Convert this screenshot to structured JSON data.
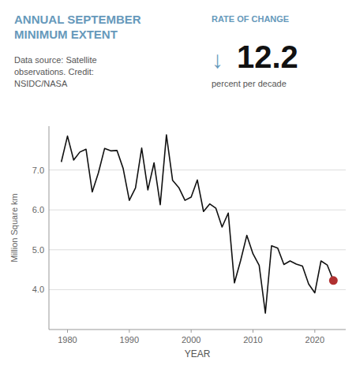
{
  "chart_data": {
    "type": "line",
    "title": "ANNUAL SEPTEMBER\nMINIMUM EXTENT",
    "annotations": [
      {
        "text": "Data source: Satellite\nobservations. Credit:\nNSIDC/NASA",
        "color": "#555555"
      },
      {
        "text": "RATE OF CHANGE",
        "color": "#6699bb"
      },
      {
        "text": "↓",
        "color": "#6699bb"
      },
      {
        "text": "12.2",
        "color": "#111111"
      },
      {
        "text": "percent per decade",
        "color": "#555555"
      }
    ],
    "x_label": "YEAR",
    "y_label": "Million Square km",
    "x": [
      1979,
      1980,
      1981,
      1982,
      1983,
      1984,
      1985,
      1986,
      1987,
      1988,
      1989,
      1990,
      1991,
      1992,
      1993,
      1994,
      1995,
      1996,
      1997,
      1998,
      1999,
      2000,
      2001,
      2002,
      2003,
      2004,
      2005,
      2006,
      2007,
      2008,
      2009,
      2010,
      2011,
      2012,
      2013,
      2014,
      2015,
      2016,
      2017,
      2018,
      2019,
      2020,
      2021,
      2022,
      2023
    ],
    "series": [
      {
        "type": "line",
        "color": "#111111",
        "values": [
          7.2,
          7.85,
          7.25,
          7.45,
          7.52,
          6.45,
          6.93,
          7.54,
          7.48,
          7.49,
          7.04,
          6.24,
          6.55,
          7.55,
          6.5,
          7.18,
          6.13,
          7.88,
          6.74,
          6.56,
          6.24,
          6.32,
          6.75,
          5.96,
          6.15,
          6.04,
          5.57,
          5.92,
          4.17,
          4.73,
          5.36,
          4.9,
          4.61,
          3.41,
          5.1,
          5.04,
          4.63,
          4.72,
          4.64,
          4.59,
          4.14,
          3.92,
          4.72,
          4.62,
          4.23
        ]
      },
      {
        "type": "scatter",
        "color": "#b03030",
        "x": [
          2023
        ],
        "values": [
          4.23
        ]
      }
    ],
    "xlim": [
      1977,
      2025
    ],
    "ylim": [
      3.0,
      8.1
    ],
    "xticks": [
      1980,
      1990,
      2000,
      2010,
      2020
    ],
    "yticks": [
      {
        "value": 4.0,
        "label": "4.0"
      },
      {
        "value": 5.0,
        "label": "5.0"
      },
      {
        "value": 6.0,
        "label": "6.0"
      },
      {
        "value": 7.0,
        "label": "7.0"
      }
    ],
    "grid": true
  }
}
